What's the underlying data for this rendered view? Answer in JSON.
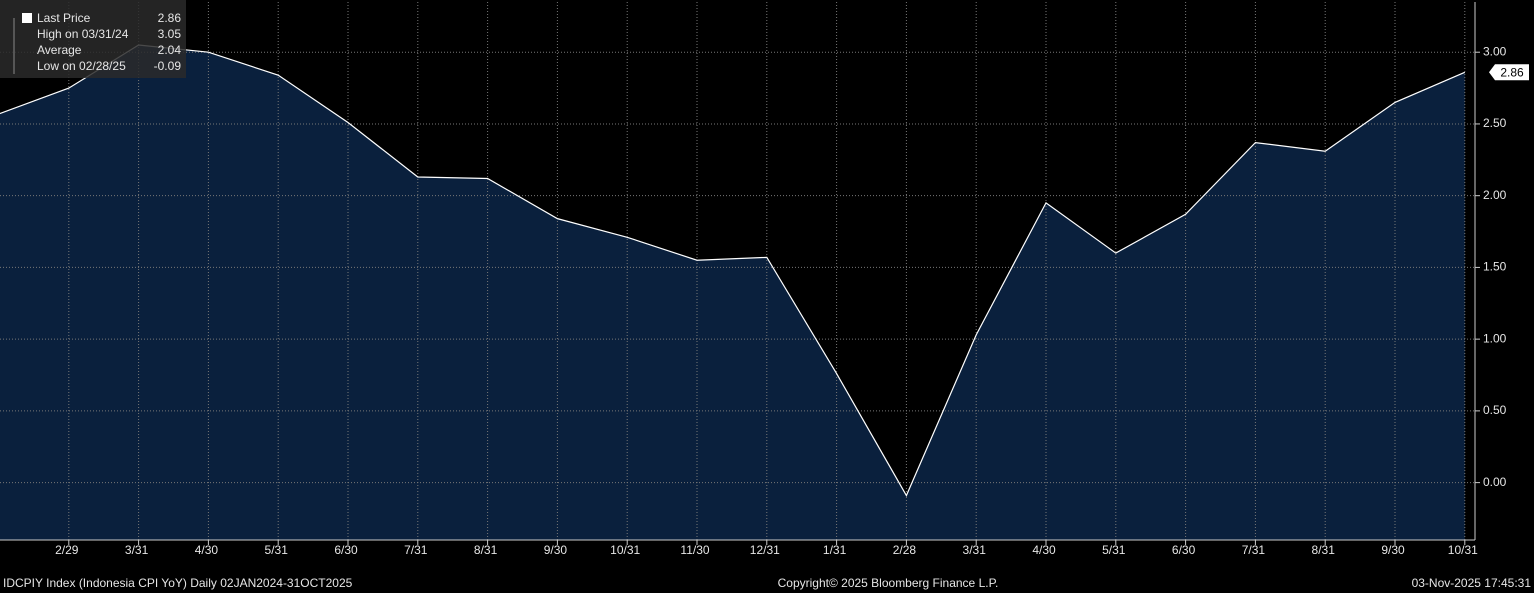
{
  "chart_data": {
    "type": "area",
    "categories": [
      null,
      "2/29",
      "3/31",
      "4/30",
      "5/31",
      "6/30",
      "7/31",
      "8/31",
      "9/30",
      "10/31",
      "11/30",
      "12/31",
      "1/31",
      "2/28",
      "3/31",
      "4/30",
      "5/31",
      "6/30",
      "7/31",
      "8/31",
      "9/30",
      "10/31"
    ],
    "series": [
      {
        "name": "Last Price",
        "color": "#ffffff",
        "fill": "#0a203d",
        "values": [
          2.57,
          2.75,
          3.05,
          3.0,
          2.84,
          2.51,
          2.13,
          2.12,
          1.84,
          1.71,
          1.55,
          1.57,
          0.76,
          -0.09,
          1.03,
          1.95,
          1.6,
          1.87,
          2.37,
          2.31,
          2.65,
          2.86
        ]
      }
    ],
    "ylim": [
      -0.4,
      3.35
    ],
    "yticks": [
      {
        "value": 0,
        "label": "0.00"
      },
      {
        "value": 0.5,
        "label": "0.50"
      },
      {
        "value": 1,
        "label": "1.00"
      },
      {
        "value": 1.5,
        "label": "1.50"
      },
      {
        "value": 2,
        "label": "2.00"
      },
      {
        "value": 2.5,
        "label": "2.50"
      },
      {
        "value": 3,
        "label": "3.00"
      }
    ],
    "grid": true,
    "legend": {
      "position": "upper left",
      "items": [
        {
          "label": "Last Price",
          "value": 2.86
        },
        {
          "label": "High on 03/31/24",
          "value": 3.05
        },
        {
          "label": "Average",
          "value": 2.04
        },
        {
          "label": "Low on 02/28/25",
          "value": -0.09
        }
      ]
    },
    "footer": {
      "left": "IDCPIY Index (Indonesia CPI YoY) Daily 02JAN2024-31OCT2025",
      "center": "Copyright© 2025 Bloomberg Finance L.P.",
      "right": "03-Nov-2025 17:45:31"
    }
  }
}
